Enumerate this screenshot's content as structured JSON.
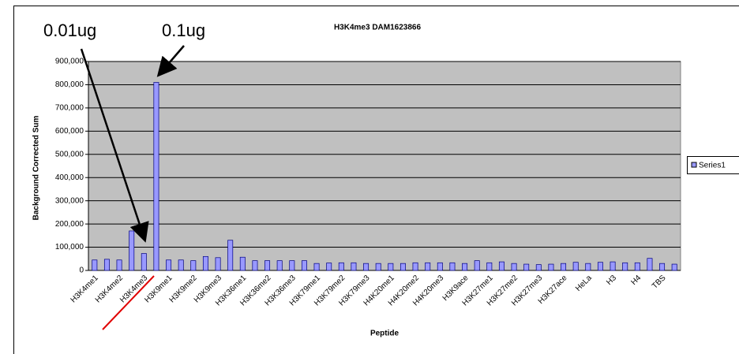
{
  "chart_data": {
    "type": "bar",
    "title": "H3K4me3 DAM1623866",
    "x_label": "Peptide",
    "y_label": "Background Corrected Sum",
    "annotations": [
      "0.01ug",
      "0.1ug"
    ],
    "categories": [
      "H3K4me1",
      null,
      "H3K4me2",
      null,
      "H3K4me3",
      null,
      "H3K9me1",
      null,
      "H3K9me2",
      null,
      "H3K9me3",
      null,
      "H3K36me1",
      null,
      "H3K36me2",
      null,
      "H3K36me3",
      null,
      "H3K79me1",
      null,
      "H3K79me2",
      null,
      "H3K79me3",
      null,
      "H4K20me1",
      null,
      "H4K20me2",
      null,
      "H4K20me3",
      null,
      "H3K9ace",
      null,
      "H3K27me1",
      null,
      "H3K27me2",
      null,
      "H3K27me3",
      null,
      "H3K27ace",
      null,
      "HeLa",
      null,
      "H3",
      null,
      "H4",
      null,
      "TBS",
      null
    ],
    "series": [
      {
        "name": "Series1",
        "color": "#9999ff",
        "values": [
          45000,
          48000,
          45000,
          170000,
          73000,
          810000,
          45000,
          45000,
          42000,
          60000,
          55000,
          130000,
          57000,
          42000,
          42000,
          42000,
          42000,
          42000,
          30000,
          32000,
          33000,
          33000,
          30000,
          30000,
          30000,
          30000,
          33000,
          33000,
          33000,
          33000,
          30000,
          42000,
          33000,
          37000,
          30000,
          27000,
          25000,
          27000,
          30000,
          35000,
          30000,
          35000,
          37000,
          33000,
          33000,
          52000,
          30000,
          27000
        ]
      }
    ],
    "ylim": [
      0,
      900000
    ],
    "yticks": [
      0,
      {
        "value": 100000,
        "label": "100,000"
      },
      {
        "value": 200000,
        "label": "200,000"
      },
      {
        "value": 300000,
        "label": "300,000"
      },
      {
        "value": 400000,
        "label": "400,000"
      },
      {
        "value": 500000,
        "label": "500,000"
      },
      {
        "value": 600000,
        "label": "600,000"
      },
      {
        "value": 700000,
        "label": "700,000"
      },
      {
        "value": 800000,
        "label": "800,000"
      },
      {
        "value": 900000,
        "label": "900,000"
      }
    ],
    "grid": true,
    "legend": "right"
  }
}
